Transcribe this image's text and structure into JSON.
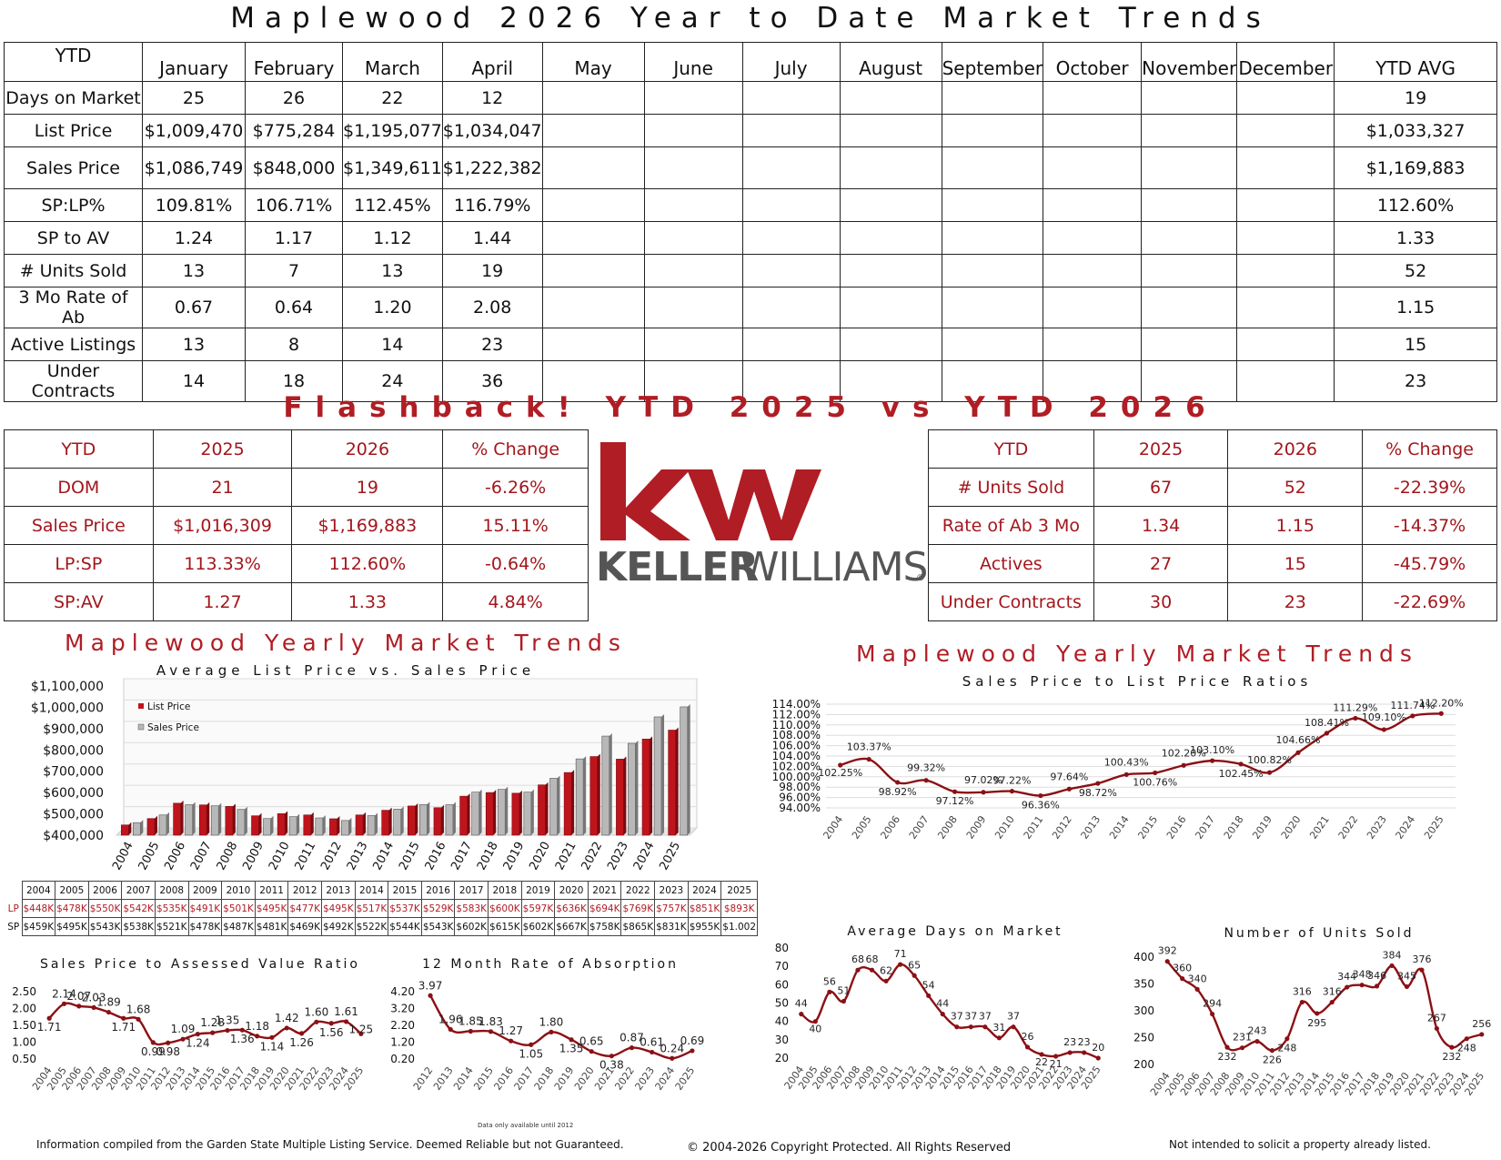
{
  "main_title": "Maplewood 2026 Year to Date Market Trends",
  "ytd_table": {
    "corner": "YTD",
    "months": [
      "January",
      "February",
      "March",
      "April",
      "May",
      "June",
      "July",
      "August",
      "September",
      "October",
      "November",
      "December"
    ],
    "avg_label": "YTD AVG",
    "rows": [
      {
        "label": "Days on Market",
        "values": [
          "25",
          "26",
          "22",
          "12",
          "",
          "",
          "",
          "",
          "",
          "",
          "",
          ""
        ],
        "avg": "19"
      },
      {
        "label": "List Price",
        "values": [
          "$1,009,470",
          "$775,284",
          "$1,195,077",
          "$1,034,047",
          "",
          "",
          "",
          "",
          "",
          "",
          "",
          ""
        ],
        "avg": "$1,033,327"
      },
      {
        "label": "Sales Price",
        "values": [
          "$1,086,749",
          "$848,000",
          "$1,349,611",
          "$1,222,382",
          "",
          "",
          "",
          "",
          "",
          "",
          "",
          ""
        ],
        "avg": "$1,169,883"
      },
      {
        "label": "SP:LP%",
        "values": [
          "109.81%",
          "106.71%",
          "112.45%",
          "116.79%",
          "",
          "",
          "",
          "",
          "",
          "",
          "",
          ""
        ],
        "avg": "112.60%"
      },
      {
        "label": "SP to AV",
        "values": [
          "1.24",
          "1.17",
          "1.12",
          "1.44",
          "",
          "",
          "",
          "",
          "",
          "",
          "",
          ""
        ],
        "avg": "1.33"
      },
      {
        "label": "# Units Sold",
        "values": [
          "13",
          "7",
          "13",
          "19",
          "",
          "",
          "",
          "",
          "",
          "",
          "",
          ""
        ],
        "avg": "52"
      },
      {
        "label": "3 Mo Rate of Ab",
        "values": [
          "0.67",
          "0.64",
          "1.20",
          "2.08",
          "",
          "",
          "",
          "",
          "",
          "",
          "",
          ""
        ],
        "avg": "1.15"
      },
      {
        "label": "Active Listings",
        "values": [
          "13",
          "8",
          "14",
          "23",
          "",
          "",
          "",
          "",
          "",
          "",
          "",
          ""
        ],
        "avg": "15"
      },
      {
        "label": "Under Contracts",
        "values": [
          "14",
          "18",
          "24",
          "36",
          "",
          "",
          "",
          "",
          "",
          "",
          "",
          ""
        ],
        "avg": "23"
      }
    ]
  },
  "flashback_title": "Flashback! YTD 2025 vs YTD 2026",
  "flash_left": {
    "headers": [
      "YTD",
      "2025",
      "2026",
      "% Change"
    ],
    "rows": [
      [
        "DOM",
        "21",
        "19",
        "-6.26%"
      ],
      [
        "Sales Price",
        "$1,016,309",
        "$1,169,883",
        "15.11%"
      ],
      [
        "LP:SP",
        "113.33%",
        "112.60%",
        "-0.64%"
      ],
      [
        "SP:AV",
        "1.27",
        "1.33",
        "4.84%"
      ]
    ]
  },
  "flash_right": {
    "headers": [
      "YTD",
      "2025",
      "2026",
      "% Change"
    ],
    "rows": [
      [
        "# Units Sold",
        "67",
        "52",
        "-22.39%"
      ],
      [
        "Rate of Ab 3 Mo",
        "1.34",
        "1.15",
        "-14.37%"
      ],
      [
        "Actives",
        "27",
        "15",
        "-45.79%"
      ],
      [
        "Under Contracts",
        "30",
        "23",
        "-22.69%"
      ]
    ]
  },
  "logo": {
    "mark": "kw",
    "wordmark_bold": "KELLER",
    "wordmark_light": "WILLIAMS",
    "registered": "®"
  },
  "colors": {
    "accent": "#b01d24",
    "bar_list": "#c0141c",
    "bar_sales": "#b8b8b8",
    "line": "#8b1015",
    "grid": "#dddddd"
  },
  "left_section_title": "Maplewood Yearly Market Trends",
  "right_section_title": "Maplewood Yearly Market Trends",
  "chart_data": [
    {
      "type": "bar",
      "title": "Average List Price vs. Sales Price",
      "categories": [
        "2004",
        "2005",
        "2006",
        "2007",
        "2008",
        "2009",
        "2010",
        "2011",
        "2012",
        "2013",
        "2014",
        "2015",
        "2016",
        "2017",
        "2018",
        "2019",
        "2020",
        "2021",
        "2022",
        "2023",
        "2024",
        "2025"
      ],
      "series": [
        {
          "name": "List Price",
          "values": [
            448,
            478,
            550,
            542,
            535,
            491,
            501,
            495,
            477,
            495,
            517,
            537,
            529,
            583,
            600,
            597,
            636,
            694,
            769,
            757,
            851,
            893
          ]
        },
        {
          "name": "Sales Price",
          "values": [
            459,
            495,
            543,
            538,
            521,
            478,
            487,
            481,
            469,
            492,
            522,
            544,
            543,
            602,
            615,
            602,
            667,
            758,
            865,
            831,
            955,
            1002
          ]
        }
      ],
      "y_ticks": [
        "$400,000",
        "$500,000",
        "$600,000",
        "$700,000",
        "$800,000",
        "$900,000",
        "$1,000,000",
        "$1,100,000"
      ],
      "ylim": [
        400,
        1100
      ],
      "legend": "top-left",
      "table_lp_label": "LP",
      "table_sp_label": "SP",
      "table_lp": [
        "$448K",
        "$478K",
        "$550K",
        "$542K",
        "$535K",
        "$491K",
        "$501K",
        "$495K",
        "$477K",
        "$495K",
        "$517K",
        "$537K",
        "$529K",
        "$583K",
        "$600K",
        "$597K",
        "$636K",
        "$694K",
        "$769K",
        "$757K",
        "$851K",
        "$893K"
      ],
      "table_sp": [
        "$459K",
        "$495K",
        "$543K",
        "$538K",
        "$521K",
        "$478K",
        "$487K",
        "$481K",
        "$469K",
        "$492K",
        "$522K",
        "$544K",
        "$543K",
        "$602K",
        "$615K",
        "$602K",
        "$667K",
        "$758K",
        "$865K",
        "$831K",
        "$955K",
        "$1.002"
      ]
    },
    {
      "type": "line",
      "title": "Sales Price to List Price Ratios",
      "x": [
        "2004",
        "2005",
        "2006",
        "2007",
        "2008",
        "2009",
        "2010",
        "2011",
        "2012",
        "2013",
        "2014",
        "2015",
        "2016",
        "2017",
        "2018",
        "2019",
        "2020",
        "2021",
        "2022",
        "2023",
        "2024",
        "2025"
      ],
      "values": [
        102.25,
        103.37,
        98.92,
        99.32,
        97.12,
        97.02,
        97.22,
        96.36,
        97.64,
        98.72,
        100.43,
        100.76,
        102.2,
        103.1,
        102.45,
        100.82,
        104.66,
        108.41,
        111.29,
        109.1,
        111.74,
        112.2
      ],
      "labels": [
        "102.25%",
        "103.37%",
        "98.92%",
        "99.32%",
        "97.12%",
        "97.02%",
        "97.22%",
        "96.36%",
        "97.64%",
        "98.72%",
        "100.43%",
        "100.76%",
        "102.20%",
        "103.10%",
        "102.45%",
        "100.82%",
        "104.66%",
        "108.41%",
        "111.29%",
        "109.10%",
        "111.74%",
        "112.20%"
      ],
      "y_ticks": [
        "94.00%",
        "96.00%",
        "98.00%",
        "100.00%",
        "102.00%",
        "104.00%",
        "106.00%",
        "108.00%",
        "110.00%",
        "112.00%",
        "114.00%"
      ],
      "ylim": [
        94,
        114
      ]
    },
    {
      "type": "line",
      "title": "Sales Price to Assessed Value Ratio",
      "x": [
        "2004",
        "2005",
        "2006",
        "2007",
        "2008",
        "2009",
        "2010",
        "2011",
        "2012",
        "2013",
        "2014",
        "2015",
        "2016",
        "2017",
        "2018",
        "2019",
        "2020",
        "2021",
        "2022",
        "2023",
        "2024",
        "2025"
      ],
      "values": [
        1.71,
        2.14,
        2.07,
        2.03,
        1.89,
        1.71,
        1.68,
        0.99,
        0.98,
        1.09,
        1.24,
        1.28,
        1.35,
        1.36,
        1.18,
        1.14,
        1.42,
        1.26,
        1.6,
        1.56,
        1.61,
        1.25
      ],
      "labels": [
        "1.71",
        "2.14",
        "2.07",
        "2.03",
        "1.89",
        "1.71",
        "1.68",
        "0.99",
        "0.98",
        "1.09",
        "1.24",
        "1.28",
        "1.35",
        "1.36",
        "1.18",
        "1.14",
        "1.42",
        "1.26",
        "1.60",
        "1.56",
        "1.61",
        "1.25"
      ],
      "y_ticks": [
        "0.50",
        "1.00",
        "1.50",
        "2.00",
        "2.50"
      ],
      "ylim": [
        0.5,
        2.5
      ]
    },
    {
      "type": "line",
      "title": "12 Month Rate of Absorption",
      "x": [
        "2012",
        "2013",
        "2014",
        "2015",
        "2016",
        "2017",
        "2018",
        "2019",
        "2020",
        "2021",
        "2022",
        "2023",
        "2024",
        "2025"
      ],
      "values": [
        3.97,
        1.96,
        1.85,
        1.83,
        1.27,
        1.05,
        1.8,
        1.35,
        0.65,
        0.38,
        0.87,
        0.61,
        0.24,
        0.69
      ],
      "labels": [
        "3.97",
        "1.96",
        "1.85",
        "1.83",
        "1.27",
        "1.05",
        "1.80",
        "1.35",
        "0.65",
        "0.38",
        "0.87",
        "0.61",
        "0.24",
        "0.69"
      ],
      "y_ticks": [
        "0.20",
        "1.20",
        "2.20",
        "3.20",
        "4.20"
      ],
      "ylim": [
        0.2,
        4.2
      ],
      "note": "Data only available until 2012"
    },
    {
      "type": "line",
      "title": "Average Days on Market",
      "x": [
        "2004",
        "2005",
        "2006",
        "2007",
        "2008",
        "2009",
        "2010",
        "2011",
        "2012",
        "2013",
        "2014",
        "2015",
        "2016",
        "2017",
        "2018",
        "2019",
        "2020",
        "2021",
        "2022",
        "2023",
        "2024",
        "2025"
      ],
      "values": [
        44,
        40,
        56,
        51,
        68,
        68,
        62,
        71,
        65,
        54,
        44,
        37,
        37,
        37,
        31,
        37,
        26,
        22,
        21,
        23,
        23,
        20
      ],
      "labels": [
        "44",
        "40",
        "56",
        "51",
        "68",
        "68",
        "62",
        "71",
        "65",
        "54",
        "44",
        "37",
        "37",
        "37",
        "31",
        "37",
        "26",
        "22",
        "21",
        "23",
        "23",
        "20"
      ],
      "y_ticks": [
        "20",
        "30",
        "40",
        "50",
        "60",
        "70",
        "80"
      ],
      "ylim": [
        20,
        80
      ]
    },
    {
      "type": "line",
      "title": "Number of Units Sold",
      "x": [
        "2004",
        "2005",
        "2006",
        "2007",
        "2008",
        "2009",
        "2010",
        "2011",
        "2012",
        "2013",
        "2014",
        "2015",
        "2016",
        "2017",
        "2018",
        "2019",
        "2020",
        "2021",
        "2022",
        "2023",
        "2024",
        "2025"
      ],
      "values": [
        392,
        360,
        340,
        294,
        232,
        231,
        243,
        226,
        248,
        316,
        295,
        316,
        344,
        348,
        346,
        384,
        345,
        376,
        267,
        232,
        248,
        256
      ],
      "labels": [
        "392",
        "360",
        "340",
        "294",
        "232",
        "231",
        "243",
        "226",
        "248",
        "316",
        "295",
        "316",
        "344",
        "348",
        "346",
        "384",
        "345",
        "376",
        "267",
        "232",
        "248",
        "256"
      ],
      "y_ticks": [
        "200",
        "250",
        "300",
        "350",
        "400"
      ],
      "ylim": [
        200,
        400
      ]
    }
  ],
  "footer": {
    "left": "Information compiled from the Garden State Multiple Listing Service.  Deemed Reliable but not Guaranteed.",
    "center": "© 2004-2026 Copyright Protected.  All Rights Reserved",
    "right": "Not intended to solicit a property already listed."
  }
}
